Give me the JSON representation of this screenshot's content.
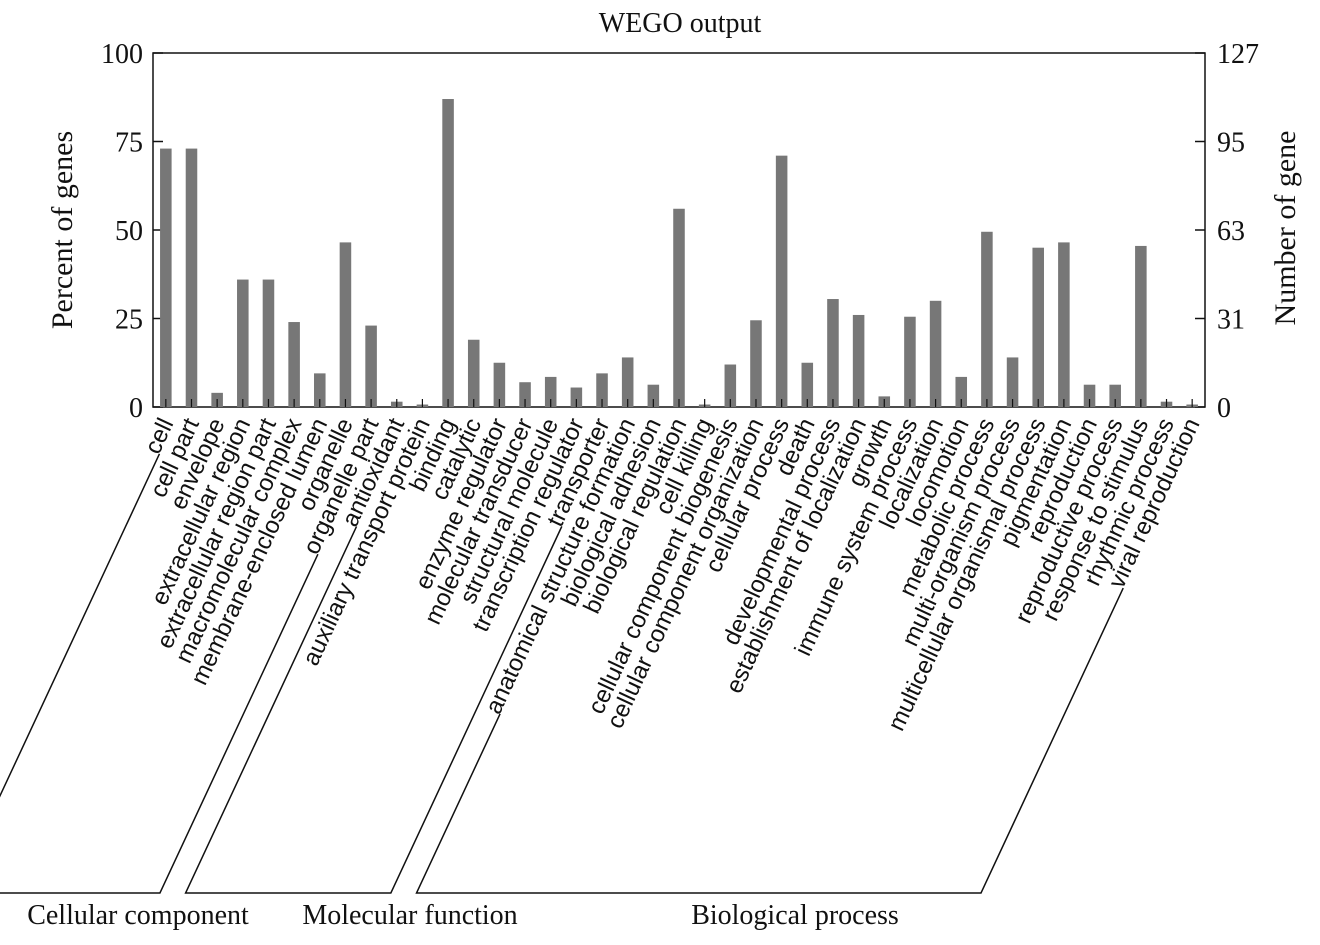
{
  "chart_data": {
    "type": "bar",
    "title": "WEGO output",
    "ylabel_left": "Percent of genes",
    "ylabel_right": "Number of gene",
    "ylim_left": [
      0,
      100
    ],
    "ylim_right": [
      0,
      127
    ],
    "yticks_left": [
      "0",
      "25",
      "50",
      "75",
      "100"
    ],
    "yticks_right": [
      "0",
      "31",
      "63",
      "95",
      "127"
    ],
    "categories": [
      "cell",
      "cell part",
      "envelope",
      "extracellular region",
      "extracellular region part",
      "macromolecular complex",
      "membrane-enclosed lumen",
      "organelle",
      "organelle part",
      "antioxidant",
      "auxiliary transport protein",
      "binding",
      "catalytic",
      "enzyme regulator",
      "molecular transducer",
      "structural molecule",
      "transcription regulator",
      "transporter",
      "anatomical structure formation",
      "biological adhesion",
      "biological regulation",
      "cell killing",
      "cellular component biogenesis",
      "cellular component organization",
      "cellular process",
      "death",
      "developmental process",
      "establishment of localization",
      "growth",
      "immune system process",
      "localization",
      "locomotion",
      "metabolic process",
      "multi-organism process",
      "multicellular organismal process",
      "pigmentation",
      "reproduction",
      "reproductive process",
      "response to stimulus",
      "rhythmic process",
      "viral reproduction"
    ],
    "values": [
      73,
      73,
      4,
      36,
      36,
      24,
      9.5,
      46.5,
      23,
      1.5,
      0.7,
      87,
      19,
      12.5,
      7,
      8.5,
      5.5,
      9.5,
      14,
      6.3,
      56,
      0.7,
      12,
      24.5,
      71,
      12.5,
      30.5,
      26,
      3,
      25.5,
      30,
      8.5,
      49.5,
      14,
      45,
      46.5,
      6.3,
      6.3,
      45.5,
      1.5,
      0.7
    ],
    "groups": [
      {
        "name": "Cellular component",
        "start": 0,
        "end": 8
      },
      {
        "name": "Molecular function",
        "start": 9,
        "end": 17
      },
      {
        "name": "Biological process",
        "start": 18,
        "end": 40
      }
    ],
    "bar_color": "#777777",
    "grid": false
  }
}
